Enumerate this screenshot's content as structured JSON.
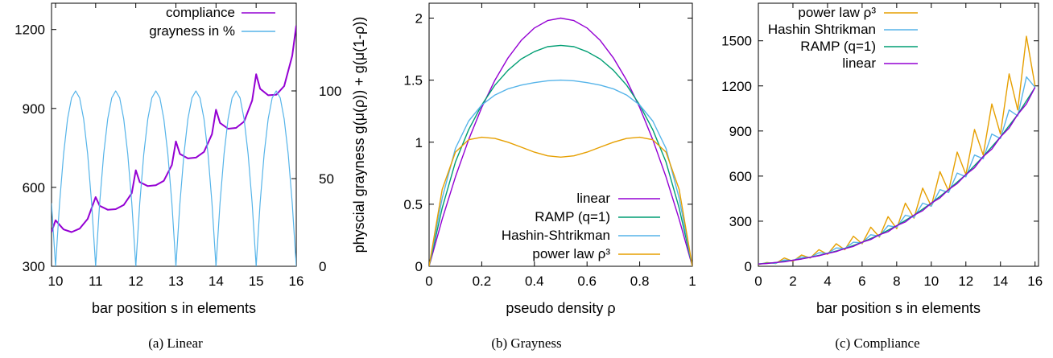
{
  "panels": [
    {
      "caption": "(a) Linear",
      "chart_data": {
        "type": "line",
        "xlabel": "bar position s in elements",
        "ylabel": "",
        "y2label": "",
        "xlim": [
          9.9,
          16
        ],
        "ylim": [
          300,
          1300
        ],
        "y2lim": [
          0,
          150
        ],
        "xticks": [
          10,
          11,
          12,
          13,
          14,
          15,
          16
        ],
        "yticks": [
          300,
          600,
          900,
          1200
        ],
        "y2ticks": [
          0,
          50,
          100
        ],
        "legend_position": "top-left",
        "series": [
          {
            "name": "compliance",
            "color": "#9400d3",
            "axis": "y",
            "x": [
              9.9,
              10.0,
              10.2,
              10.4,
              10.6,
              10.8,
              11.0,
              11.1,
              11.3,
              11.5,
              11.7,
              11.9,
              12.0,
              12.1,
              12.3,
              12.5,
              12.7,
              12.9,
              13.0,
              13.1,
              13.3,
              13.5,
              13.7,
              13.9,
              14.0,
              14.1,
              14.3,
              14.5,
              14.7,
              14.9,
              15.0,
              15.1,
              15.3,
              15.5,
              15.7,
              15.9,
              16.0
            ],
            "y": [
              430,
              475,
              440,
              430,
              443,
              480,
              563,
              530,
              515,
              517,
              533,
              578,
              665,
              620,
              605,
              608,
              625,
              685,
              775,
              727,
              710,
              713,
              735,
              802,
              895,
              845,
              823,
              826,
              850,
              930,
              1030,
              975,
              950,
              952,
              985,
              1100,
              1215
            ]
          },
          {
            "name": "grayness in %",
            "color": "#56b4e9",
            "axis": "y2",
            "x": [
              9.9,
              10.0,
              10.1,
              10.2,
              10.3,
              10.4,
              10.5,
              10.6,
              10.7,
              10.8,
              10.9,
              11.0,
              11.1,
              11.2,
              11.3,
              11.4,
              11.5,
              11.6,
              11.7,
              11.8,
              11.9,
              12.0,
              12.1,
              12.2,
              12.3,
              12.4,
              12.5,
              12.6,
              12.7,
              12.8,
              12.9,
              13.0,
              13.1,
              13.2,
              13.3,
              13.4,
              13.5,
              13.6,
              13.7,
              13.8,
              13.9,
              14.0,
              14.1,
              14.2,
              14.3,
              14.4,
              14.5,
              14.6,
              14.7,
              14.8,
              14.9,
              15.0,
              15.1,
              15.2,
              15.3,
              15.4,
              15.5,
              15.6,
              15.7,
              15.8,
              15.9,
              16.0
            ],
            "y": [
              36,
              0,
              36,
              64,
              84,
              96,
              100,
              96,
              84,
              64,
              36,
              0,
              36,
              64,
              84,
              96,
              100,
              96,
              84,
              64,
              36,
              0,
              36,
              64,
              84,
              96,
              100,
              96,
              84,
              64,
              36,
              0,
              36,
              64,
              84,
              96,
              100,
              96,
              84,
              64,
              36,
              0,
              36,
              64,
              84,
              96,
              100,
              96,
              84,
              64,
              36,
              0,
              36,
              64,
              84,
              96,
              100,
              96,
              84,
              64,
              36,
              0
            ]
          }
        ]
      }
    },
    {
      "caption": "(b) Grayness",
      "chart_data": {
        "type": "line",
        "xlabel": "pseudo density ρ",
        "ylabel": "physcial grayness g(μ(ρ)) + g(μ(1-ρ))",
        "xlim": [
          0,
          1
        ],
        "ylim": [
          0,
          2.12
        ],
        "xticks": [
          0,
          0.2,
          0.4,
          0.6,
          0.8,
          1
        ],
        "yticks": [
          0,
          0.5,
          1,
          1.5,
          2
        ],
        "legend_position": "bottom-right",
        "series": [
          {
            "name": "linear",
            "color": "#9400d3",
            "x": [
              0,
              0.05,
              0.1,
              0.15,
              0.2,
              0.25,
              0.3,
              0.35,
              0.4,
              0.45,
              0.5,
              0.55,
              0.6,
              0.65,
              0.7,
              0.75,
              0.8,
              0.85,
              0.9,
              0.95,
              1
            ],
            "y": [
              0,
              0.38,
              0.72,
              1.02,
              1.28,
              1.5,
              1.68,
              1.82,
              1.92,
              1.98,
              2.0,
              1.98,
              1.92,
              1.82,
              1.68,
              1.5,
              1.28,
              1.02,
              0.72,
              0.38,
              0
            ]
          },
          {
            "name": "RAMP (q=1)",
            "color": "#009e73",
            "x": [
              0,
              0.05,
              0.1,
              0.15,
              0.2,
              0.25,
              0.3,
              0.35,
              0.4,
              0.45,
              0.5,
              0.55,
              0.6,
              0.65,
              0.7,
              0.75,
              0.8,
              0.85,
              0.9,
              0.95,
              1
            ],
            "y": [
              0,
              0.47,
              0.84,
              1.1,
              1.3,
              1.46,
              1.58,
              1.67,
              1.73,
              1.77,
              1.78,
              1.77,
              1.73,
              1.67,
              1.58,
              1.46,
              1.3,
              1.1,
              0.84,
              0.47,
              0
            ]
          },
          {
            "name": "Hashin-Shtrikman",
            "color": "#56b4e9",
            "x": [
              0,
              0.05,
              0.1,
              0.15,
              0.2,
              0.25,
              0.3,
              0.35,
              0.4,
              0.45,
              0.5,
              0.55,
              0.6,
              0.65,
              0.7,
              0.75,
              0.8,
              0.85,
              0.9,
              0.95,
              1
            ],
            "y": [
              0,
              0.55,
              0.95,
              1.17,
              1.3,
              1.38,
              1.43,
              1.46,
              1.48,
              1.495,
              1.5,
              1.495,
              1.48,
              1.46,
              1.43,
              1.38,
              1.3,
              1.17,
              0.95,
              0.55,
              0
            ]
          },
          {
            "name": "power law ρ³",
            "color": "#e69f00",
            "x": [
              0,
              0.05,
              0.1,
              0.15,
              0.2,
              0.25,
              0.3,
              0.35,
              0.4,
              0.45,
              0.5,
              0.55,
              0.6,
              0.65,
              0.7,
              0.75,
              0.8,
              0.85,
              0.9,
              0.95,
              1
            ],
            "y": [
              0,
              0.62,
              0.92,
              1.02,
              1.04,
              1.03,
              1.0,
              0.96,
              0.92,
              0.89,
              0.88,
              0.89,
              0.92,
              0.96,
              1.0,
              1.03,
              1.04,
              1.02,
              0.92,
              0.62,
              0
            ]
          }
        ]
      }
    },
    {
      "caption": "(c) Compliance",
      "chart_data": {
        "type": "line",
        "xlabel": "bar position s in elements",
        "ylabel": "",
        "xlim": [
          0,
          16.2
        ],
        "ylim": [
          0,
          1750
        ],
        "xticks": [
          0,
          2,
          4,
          6,
          8,
          10,
          12,
          14,
          16
        ],
        "yticks": [
          0,
          300,
          600,
          900,
          1200,
          1500
        ],
        "legend_position": "top-left",
        "series": [
          {
            "name": "power law ρ³",
            "color": "#e69f00",
            "x": [
              0,
              0.5,
              1,
              1.5,
              2,
              2.5,
              3,
              3.5,
              4,
              4.5,
              5,
              5.5,
              6,
              6.5,
              7,
              7.5,
              8,
              8.5,
              9,
              9.5,
              10,
              10.5,
              11,
              11.5,
              12,
              12.5,
              13,
              13.5,
              14,
              14.5,
              15,
              15.5,
              16
            ],
            "y": [
              12,
              25,
              18,
              55,
              33,
              75,
              55,
              110,
              80,
              150,
              110,
              200,
              150,
              260,
              195,
              330,
              250,
              420,
              320,
              520,
              400,
              630,
              500,
              760,
              610,
              910,
              740,
              1080,
              880,
              1280,
              1040,
              1530,
              1200
            ]
          },
          {
            "name": "Hashin Shtrikman",
            "color": "#56b4e9",
            "x": [
              0,
              0.5,
              1,
              1.5,
              2,
              2.5,
              3,
              3.5,
              4,
              4.5,
              5,
              5.5,
              6,
              6.5,
              7,
              7.5,
              8,
              8.5,
              9,
              9.5,
              10,
              10.5,
              11,
              11.5,
              12,
              12.5,
              13,
              13.5,
              14,
              14.5,
              15,
              15.5,
              16
            ],
            "y": [
              15,
              22,
              20,
              42,
              38,
              62,
              58,
              90,
              85,
              122,
              118,
              160,
              155,
              210,
              200,
              270,
              260,
              340,
              325,
              420,
              400,
              510,
              490,
              620,
              595,
              740,
              715,
              880,
              850,
              1040,
              1000,
              1260,
              1190
            ]
          },
          {
            "name": "RAMP (q=1)",
            "color": "#009e73",
            "x": [
              0,
              1,
              2,
              3,
              4,
              5,
              6,
              7,
              8,
              9,
              10,
              11,
              12,
              13,
              14,
              15,
              16
            ],
            "y": [
              15,
              25,
              40,
              60,
              85,
              118,
              160,
              210,
              270,
              340,
              420,
              510,
              610,
              730,
              860,
              1010,
              1190
            ]
          },
          {
            "name": "linear",
            "color": "#9400d3",
            "x": [
              0,
              0.5,
              1,
              1.5,
              2,
              2.5,
              3,
              3.5,
              4,
              4.5,
              5,
              5.5,
              6,
              6.5,
              7,
              7.5,
              8,
              8.5,
              9,
              9.5,
              10,
              10.5,
              11,
              11.5,
              12,
              12.5,
              13,
              13.5,
              14,
              14.5,
              15,
              15.5,
              16
            ],
            "y": [
              15,
              18,
              25,
              30,
              40,
              48,
              60,
              70,
              85,
              98,
              118,
              132,
              160,
              178,
              210,
              230,
              270,
              295,
              340,
              370,
              420,
              455,
              510,
              550,
              610,
              655,
              730,
              780,
              860,
              920,
              1010,
              1080,
              1190
            ]
          }
        ]
      }
    }
  ]
}
